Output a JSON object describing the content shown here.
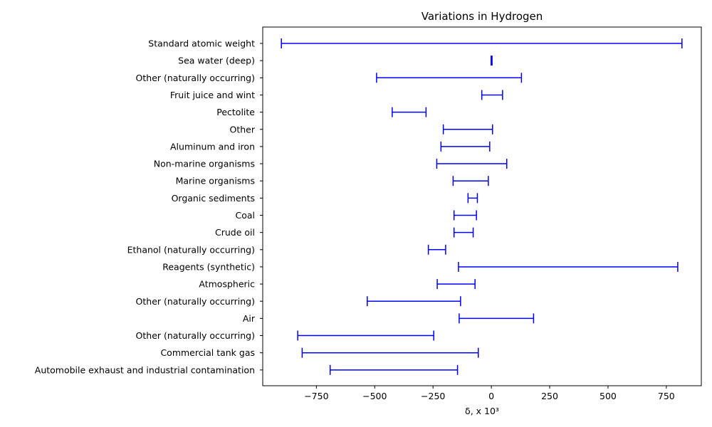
{
  "chart_data": {
    "type": "errorbar-range",
    "title": "Variations  in Hydrogen",
    "xlabel": "δ, x 10³",
    "ylabel": "",
    "xlim": [
      -980,
      900
    ],
    "x_ticks": [
      -750,
      -500,
      -250,
      0,
      250,
      500,
      750
    ],
    "x_tick_labels": [
      "−750",
      "−500",
      "−250",
      "0",
      "250",
      "500",
      "750"
    ],
    "color": "#0000ff",
    "grid": false,
    "categories": [
      "Standard atomic weight",
      "Sea water (deep)",
      "Other (naturally occurring)",
      "Fruit juice and wint",
      "Pectolite",
      "Other",
      "Aluminum and iron",
      "Non-marine organisms",
      "Marine organisms",
      "Organic sediments",
      "Coal",
      "Crude oil",
      "Ethanol (naturally occurring)",
      "Reagents (synthetic)",
      "Atmospheric",
      "Other (naturally occurring)",
      "Air",
      "Other (naturally occurring)",
      "Commercial tank gas",
      "Automobile exhaust and industrial contamination"
    ],
    "ranges": [
      [
        -900,
        817
      ],
      [
        -1,
        3
      ],
      [
        -492,
        129
      ],
      [
        -41,
        48
      ],
      [
        -425,
        -280
      ],
      [
        -206,
        5
      ],
      [
        -216,
        -7
      ],
      [
        -234,
        66
      ],
      [
        -164,
        -13
      ],
      [
        -100,
        -60
      ],
      [
        -160,
        -64
      ],
      [
        -160,
        -78
      ],
      [
        -270,
        -196
      ],
      [
        -141,
        799
      ],
      [
        -232,
        -70
      ],
      [
        -532,
        -132
      ],
      [
        -138,
        181
      ],
      [
        -830,
        -247
      ],
      [
        -811,
        -56
      ],
      [
        -691,
        -145
      ]
    ]
  }
}
